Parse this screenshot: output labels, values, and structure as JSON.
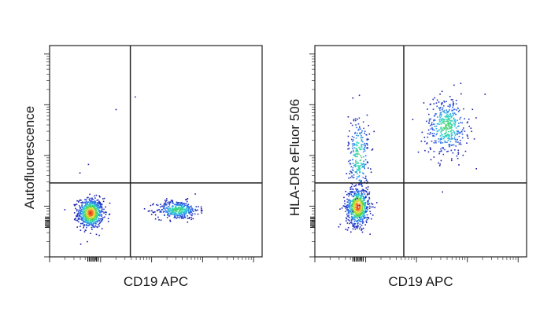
{
  "chart_data": [
    {
      "type": "scatter",
      "title": "",
      "xlabel": "CD19 APC",
      "ylabel": "Autofluorescence",
      "x_scale": "log",
      "y_scale": "log",
      "xlim": [
        0,
        1
      ],
      "ylim": [
        0,
        1
      ],
      "tick_labels": "none",
      "quadrant_gate": {
        "x": 0.38,
        "y": 0.35
      },
      "populations": [
        {
          "name": "CD19-negative",
          "center": [
            0.19,
            0.21
          ],
          "spread": [
            0.03,
            0.035
          ],
          "count": 700
        },
        {
          "name": "CD19-positive",
          "center": [
            0.6,
            0.225
          ],
          "spread": [
            0.05,
            0.022
          ],
          "count": 380
        }
      ],
      "outliers": [
        [
          0.31,
          0.7
        ],
        [
          0.4,
          0.76
        ],
        [
          0.18,
          0.44
        ],
        [
          0.14,
          0.4
        ]
      ]
    },
    {
      "type": "scatter",
      "title": "",
      "xlabel": "CD19 APC",
      "ylabel": "HLA-DR eFluor 506",
      "x_scale": "log",
      "y_scale": "log",
      "xlim": [
        0,
        1
      ],
      "ylim": [
        0,
        1
      ],
      "tick_labels": "none",
      "quadrant_gate": {
        "x": 0.42,
        "y": 0.35
      },
      "populations": [
        {
          "name": "HLA-DR-low CD19-negative",
          "center": [
            0.2,
            0.24
          ],
          "spread": [
            0.028,
            0.045
          ],
          "count": 650
        },
        {
          "name": "HLA-DR-intermediate tail",
          "center": [
            0.205,
            0.48
          ],
          "spread": [
            0.025,
            0.1
          ],
          "count": 260
        },
        {
          "name": "CD19-positive HLA-DR-high",
          "center": [
            0.62,
            0.62
          ],
          "spread": [
            0.05,
            0.07
          ],
          "count": 420
        }
      ],
      "outliers": [
        [
          0.6,
          0.31
        ],
        [
          0.76,
          0.42
        ],
        [
          0.5,
          0.55
        ]
      ]
    }
  ],
  "palette": {
    "low": "#1a1aa8",
    "mid_low": "#2f6cf0",
    "mid": "#2bd4d0",
    "mid_high": "#4fd34a",
    "high": "#f2e23a",
    "peak": "#e8381e",
    "frame": "#222222"
  }
}
